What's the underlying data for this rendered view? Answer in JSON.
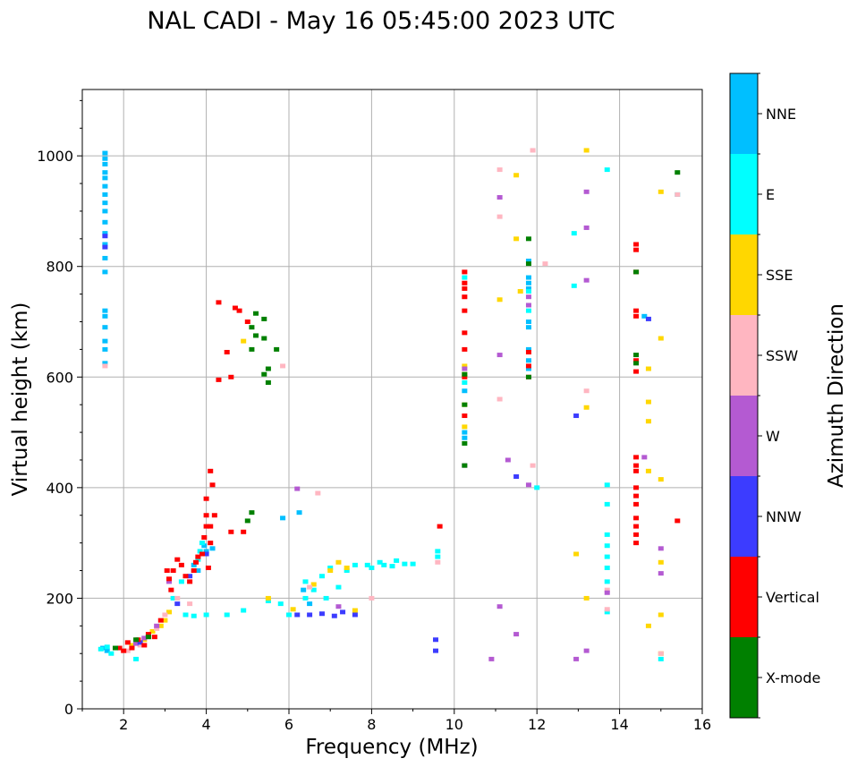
{
  "chart_data": {
    "type": "scatter",
    "title": "NAL CADI - May 16 05:45:00 2023 UTC",
    "xlabel": "Frequency (MHz)",
    "ylabel": "Virtual height (km)",
    "xlim": [
      1,
      16
    ],
    "ylim": [
      0,
      1120
    ],
    "xticks": [
      2,
      4,
      6,
      8,
      10,
      12,
      14,
      16
    ],
    "yticks": [
      0,
      200,
      400,
      600,
      800,
      1000
    ],
    "grid": true,
    "colorbar": {
      "title": "Azimuth Direction",
      "categories": [
        {
          "name": "X-mode",
          "color": "#008000"
        },
        {
          "name": "Vertical",
          "color": "#ff0000"
        },
        {
          "name": "NNW",
          "color": "#3c3cff"
        },
        {
          "name": "W",
          "color": "#b45ad2"
        },
        {
          "name": "SSW",
          "color": "#ffb6c1"
        },
        {
          "name": "SSE",
          "color": "#ffd700"
        },
        {
          "name": "E",
          "color": "#00ffff"
        },
        {
          "name": "NNE",
          "color": "#00bfff"
        }
      ]
    },
    "series": [
      {
        "name": "NNE",
        "points": [
          [
            1.55,
            1005
          ],
          [
            1.55,
            995
          ],
          [
            1.55,
            985
          ],
          [
            1.55,
            970
          ],
          [
            1.55,
            960
          ],
          [
            1.55,
            945
          ],
          [
            1.55,
            930
          ],
          [
            1.55,
            915
          ],
          [
            1.55,
            900
          ],
          [
            1.55,
            880
          ],
          [
            1.55,
            860
          ],
          [
            1.55,
            840
          ],
          [
            1.55,
            815
          ],
          [
            1.55,
            790
          ],
          [
            1.55,
            720
          ],
          [
            1.55,
            710
          ],
          [
            1.55,
            690
          ],
          [
            1.55,
            665
          ],
          [
            1.55,
            650
          ],
          [
            1.55,
            625
          ],
          [
            1.5,
            110
          ],
          [
            1.6,
            105
          ],
          [
            4.15,
            290
          ],
          [
            4.0,
            285
          ],
          [
            3.95,
            295
          ],
          [
            3.7,
            260
          ],
          [
            3.8,
            250
          ],
          [
            5.85,
            345
          ],
          [
            6.25,
            355
          ],
          [
            6.35,
            215
          ],
          [
            6.5,
            190
          ],
          [
            10.25,
            500
          ],
          [
            10.25,
            490
          ],
          [
            10.25,
            575
          ],
          [
            11.8,
            780
          ],
          [
            11.8,
            770
          ],
          [
            11.8,
            760
          ],
          [
            11.8,
            700
          ],
          [
            11.8,
            690
          ],
          [
            11.8,
            650
          ],
          [
            11.8,
            630
          ],
          [
            11.8,
            615
          ],
          [
            11.8,
            810
          ],
          [
            14.6,
            710
          ]
        ]
      },
      {
        "name": "E",
        "points": [
          [
            1.45,
            108
          ],
          [
            1.6,
            112
          ],
          [
            1.7,
            100
          ],
          [
            1.85,
            110
          ],
          [
            2.3,
            90
          ],
          [
            3.2,
            200
          ],
          [
            3.5,
            170
          ],
          [
            3.7,
            168
          ],
          [
            4.0,
            170
          ],
          [
            4.5,
            170
          ],
          [
            4.9,
            178
          ],
          [
            5.5,
            195
          ],
          [
            5.8,
            190
          ],
          [
            6.0,
            170
          ],
          [
            6.4,
            230
          ],
          [
            6.4,
            200
          ],
          [
            6.6,
            215
          ],
          [
            6.8,
            240
          ],
          [
            6.9,
            200
          ],
          [
            7.0,
            255
          ],
          [
            7.2,
            220
          ],
          [
            7.4,
            250
          ],
          [
            7.6,
            260
          ],
          [
            7.9,
            260
          ],
          [
            8.0,
            255
          ],
          [
            8.2,
            265
          ],
          [
            8.3,
            260
          ],
          [
            8.5,
            258
          ],
          [
            8.6,
            268
          ],
          [
            8.8,
            262
          ],
          [
            9.0,
            262
          ],
          [
            9.6,
            275
          ],
          [
            9.6,
            285
          ],
          [
            3.8,
            270
          ],
          [
            3.85,
            285
          ],
          [
            3.9,
            300
          ],
          [
            3.7,
            250
          ],
          [
            3.4,
            230
          ],
          [
            10.25,
            590
          ],
          [
            10.25,
            780
          ],
          [
            11.8,
            755
          ],
          [
            11.8,
            720
          ],
          [
            12.0,
            400
          ],
          [
            12.9,
            860
          ],
          [
            12.9,
            765
          ],
          [
            13.7,
            975
          ],
          [
            13.7,
            405
          ],
          [
            13.7,
            370
          ],
          [
            13.7,
            315
          ],
          [
            13.7,
            295
          ],
          [
            13.7,
            275
          ],
          [
            13.7,
            255
          ],
          [
            13.7,
            230
          ],
          [
            13.7,
            175
          ],
          [
            15.0,
            90
          ],
          [
            15.4,
            930
          ]
        ]
      },
      {
        "name": "SSE",
        "points": [
          [
            2.2,
            115
          ],
          [
            2.5,
            125
          ],
          [
            2.7,
            140
          ],
          [
            2.9,
            150
          ],
          [
            3.0,
            160
          ],
          [
            3.1,
            175
          ],
          [
            4.9,
            665
          ],
          [
            5.5,
            200
          ],
          [
            6.1,
            180
          ],
          [
            6.6,
            225
          ],
          [
            7.0,
            250
          ],
          [
            7.2,
            265
          ],
          [
            7.4,
            255
          ],
          [
            7.6,
            178
          ],
          [
            10.25,
            620
          ],
          [
            10.25,
            605
          ],
          [
            10.25,
            550
          ],
          [
            10.25,
            510
          ],
          [
            11.1,
            740
          ],
          [
            11.5,
            965
          ],
          [
            11.6,
            755
          ],
          [
            11.5,
            850
          ],
          [
            13.2,
            1010
          ],
          [
            12.95,
            280
          ],
          [
            13.2,
            545
          ],
          [
            13.2,
            200
          ],
          [
            14.7,
            615
          ],
          [
            14.7,
            555
          ],
          [
            14.7,
            520
          ],
          [
            14.7,
            430
          ],
          [
            14.7,
            150
          ],
          [
            15.0,
            935
          ],
          [
            15.0,
            670
          ],
          [
            15.0,
            415
          ],
          [
            15.0,
            265
          ],
          [
            15.0,
            170
          ],
          [
            15.0,
            100
          ]
        ]
      },
      {
        "name": "SSW",
        "points": [
          [
            1.55,
            620
          ],
          [
            2.1,
            105
          ],
          [
            2.4,
            115
          ],
          [
            2.6,
            130
          ],
          [
            2.8,
            145
          ],
          [
            3.0,
            170
          ],
          [
            3.3,
            200
          ],
          [
            3.6,
            190
          ],
          [
            5.85,
            620
          ],
          [
            6.7,
            390
          ],
          [
            6.5,
            220
          ],
          [
            8.0,
            200
          ],
          [
            9.6,
            265
          ],
          [
            10.25,
            790
          ],
          [
            10.25,
            770
          ],
          [
            10.25,
            745
          ],
          [
            11.1,
            975
          ],
          [
            11.1,
            890
          ],
          [
            11.1,
            560
          ],
          [
            11.9,
            1010
          ],
          [
            11.9,
            440
          ],
          [
            12.2,
            805
          ],
          [
            13.2,
            575
          ],
          [
            13.7,
            215
          ],
          [
            13.7,
            180
          ],
          [
            15.0,
            100
          ],
          [
            15.4,
            930
          ]
        ]
      },
      {
        "name": "W",
        "points": [
          [
            2.3,
            118
          ],
          [
            2.5,
            128
          ],
          [
            2.8,
            150
          ],
          [
            3.1,
            230
          ],
          [
            6.2,
            398
          ],
          [
            7.2,
            185
          ],
          [
            10.25,
            615
          ],
          [
            10.25,
            440
          ],
          [
            10.9,
            90
          ],
          [
            11.1,
            925
          ],
          [
            11.1,
            640
          ],
          [
            11.1,
            185
          ],
          [
            11.3,
            450
          ],
          [
            11.5,
            135
          ],
          [
            11.8,
            745
          ],
          [
            11.8,
            730
          ],
          [
            11.8,
            405
          ],
          [
            13.2,
            935
          ],
          [
            13.2,
            775
          ],
          [
            13.2,
            870
          ],
          [
            13.2,
            105
          ],
          [
            12.95,
            90
          ],
          [
            13.7,
            210
          ],
          [
            14.6,
            455
          ],
          [
            15.0,
            290
          ],
          [
            15.0,
            245
          ]
        ]
      },
      {
        "name": "NNW",
        "points": [
          [
            1.55,
            835
          ],
          [
            1.55,
            855
          ],
          [
            2.4,
            120
          ],
          [
            3.3,
            190
          ],
          [
            3.6,
            240
          ],
          [
            4.0,
            280
          ],
          [
            6.2,
            170
          ],
          [
            6.5,
            170
          ],
          [
            6.8,
            172
          ],
          [
            7.1,
            168
          ],
          [
            7.3,
            175
          ],
          [
            7.6,
            170
          ],
          [
            9.55,
            105
          ],
          [
            9.55,
            125
          ],
          [
            11.5,
            420
          ],
          [
            12.95,
            530
          ],
          [
            14.7,
            705
          ]
        ]
      },
      {
        "name": "Vertical",
        "points": [
          [
            1.9,
            110
          ],
          [
            2.0,
            105
          ],
          [
            2.1,
            120
          ],
          [
            2.2,
            110
          ],
          [
            2.35,
            125
          ],
          [
            2.5,
            115
          ],
          [
            2.6,
            135
          ],
          [
            2.75,
            130
          ],
          [
            2.9,
            160
          ],
          [
            3.05,
            250
          ],
          [
            3.1,
            235
          ],
          [
            3.15,
            215
          ],
          [
            3.2,
            250
          ],
          [
            3.3,
            270
          ],
          [
            3.4,
            260
          ],
          [
            3.5,
            240
          ],
          [
            3.6,
            230
          ],
          [
            3.7,
            250
          ],
          [
            3.75,
            265
          ],
          [
            3.8,
            275
          ],
          [
            3.9,
            280
          ],
          [
            3.95,
            310
          ],
          [
            4.0,
            330
          ],
          [
            4.0,
            350
          ],
          [
            4.0,
            380
          ],
          [
            4.05,
            255
          ],
          [
            4.1,
            300
          ],
          [
            4.1,
            330
          ],
          [
            4.1,
            430
          ],
          [
            4.15,
            405
          ],
          [
            4.2,
            350
          ],
          [
            4.3,
            735
          ],
          [
            4.3,
            595
          ],
          [
            4.5,
            645
          ],
          [
            4.6,
            600
          ],
          [
            4.7,
            725
          ],
          [
            4.8,
            720
          ],
          [
            5.0,
            700
          ],
          [
            4.6,
            320
          ],
          [
            4.9,
            320
          ],
          [
            9.65,
            330
          ],
          [
            10.25,
            790
          ],
          [
            10.25,
            770
          ],
          [
            10.25,
            760
          ],
          [
            10.25,
            745
          ],
          [
            10.25,
            720
          ],
          [
            10.25,
            680
          ],
          [
            10.25,
            650
          ],
          [
            10.25,
            600
          ],
          [
            10.25,
            530
          ],
          [
            11.8,
            645
          ],
          [
            11.8,
            620
          ],
          [
            11.8,
            600
          ],
          [
            14.4,
            840
          ],
          [
            14.4,
            830
          ],
          [
            14.4,
            790
          ],
          [
            14.4,
            720
          ],
          [
            14.4,
            710
          ],
          [
            14.4,
            630
          ],
          [
            14.4,
            610
          ],
          [
            14.4,
            455
          ],
          [
            14.4,
            440
          ],
          [
            14.4,
            430
          ],
          [
            14.4,
            400
          ],
          [
            14.4,
            385
          ],
          [
            14.4,
            370
          ],
          [
            14.4,
            345
          ],
          [
            14.4,
            330
          ],
          [
            14.4,
            315
          ],
          [
            14.4,
            300
          ],
          [
            15.4,
            340
          ]
        ]
      },
      {
        "name": "X-mode",
        "points": [
          [
            1.8,
            110
          ],
          [
            2.3,
            125
          ],
          [
            2.6,
            130
          ],
          [
            5.1,
            690
          ],
          [
            5.2,
            675
          ],
          [
            5.2,
            715
          ],
          [
            5.4,
            705
          ],
          [
            5.4,
            605
          ],
          [
            5.5,
            615
          ],
          [
            5.5,
            590
          ],
          [
            5.7,
            650
          ],
          [
            5.4,
            670
          ],
          [
            5.1,
            650
          ],
          [
            5.0,
            340
          ],
          [
            5.1,
            355
          ],
          [
            10.25,
            605
          ],
          [
            10.25,
            550
          ],
          [
            10.25,
            480
          ],
          [
            10.25,
            440
          ],
          [
            11.8,
            850
          ],
          [
            11.8,
            805
          ],
          [
            11.8,
            600
          ],
          [
            14.4,
            790
          ],
          [
            14.4,
            640
          ],
          [
            14.4,
            625
          ],
          [
            15.4,
            970
          ]
        ]
      }
    ]
  }
}
